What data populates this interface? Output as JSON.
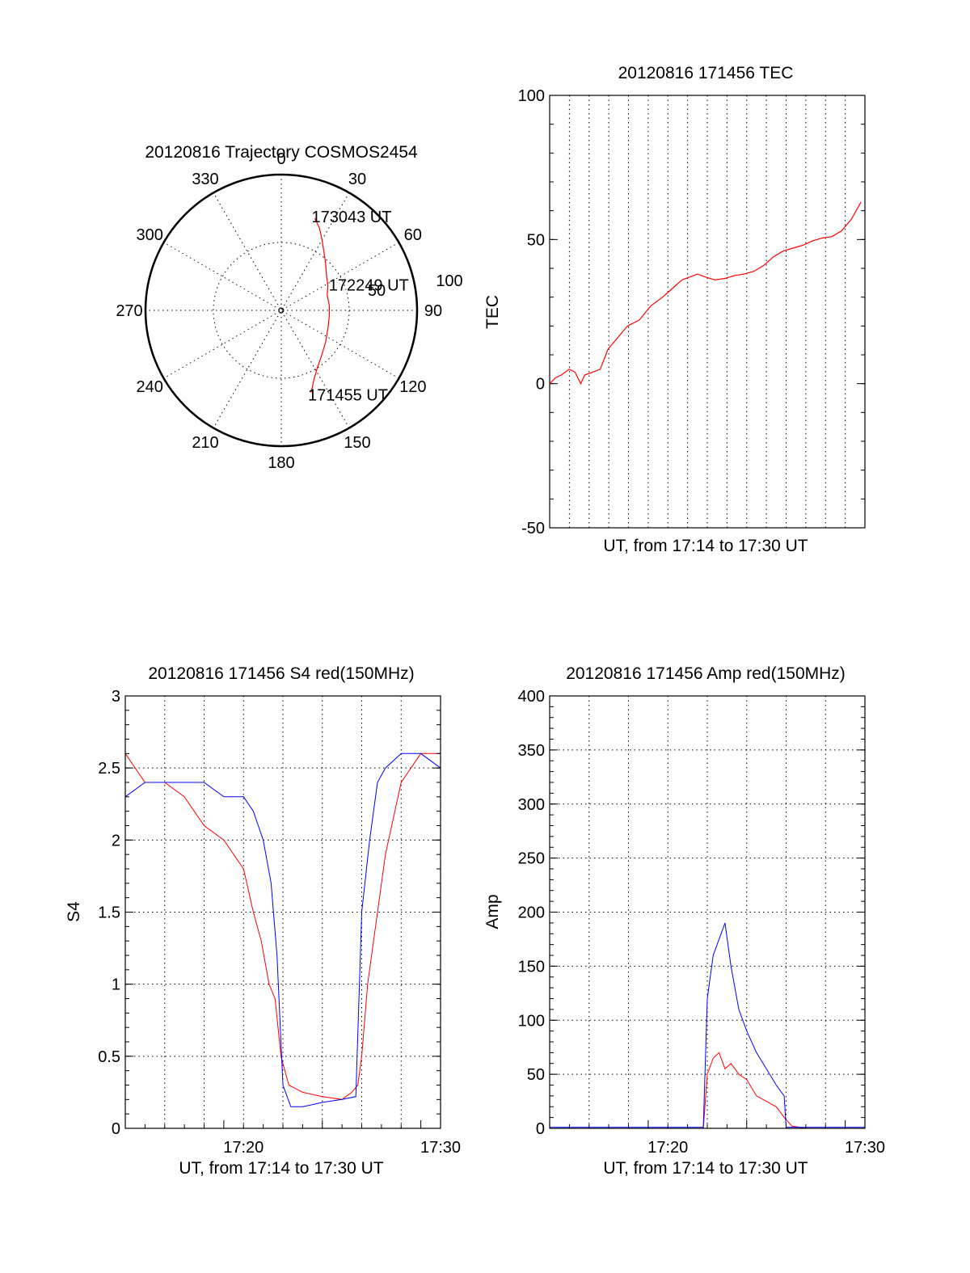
{
  "colors": {
    "red": "#ff0000",
    "blue": "#0000ff",
    "axis": "#000000"
  },
  "chart_data": [
    {
      "type": "polar",
      "title": "20120816 Trajectory COSMOS2454",
      "angle_ticks": [
        "0",
        "30",
        "60",
        "90",
        "120",
        "150",
        "180",
        "210",
        "240",
        "270",
        "300",
        "330"
      ],
      "radius_labels": [
        "50",
        "100"
      ],
      "radius_max": 90,
      "grid": "dotted",
      "series": [
        {
          "color": "#ff0000",
          "azimuth_deg": [
            160,
            155,
            148,
            138,
            125,
            110,
            96,
            84,
            72,
            62,
            52,
            43,
            36,
            30,
            25,
            20
          ],
          "elevation_deg": [
            32,
            39,
            45,
            50,
            54,
            57,
            58,
            58,
            58,
            55,
            52,
            47,
            42,
            36,
            30,
            25
          ]
        }
      ],
      "annotations": [
        {
          "text": "173043 UT",
          "at": "end"
        },
        {
          "text": "172249 UT",
          "at": "middle"
        },
        {
          "text": "171455 UT",
          "at": "start"
        }
      ]
    },
    {
      "type": "line",
      "title": "20120816 171456 TEC",
      "xlabel": "UT, from 17:14 to 17:30 UT",
      "ylabel": "TEC",
      "ylim": [
        -50,
        100
      ],
      "yticks": [
        "100",
        "50",
        "0",
        "-50"
      ],
      "xlim": [
        0,
        16.2
      ],
      "grid": "vertical dotted every minute",
      "series": [
        {
          "color": "#ff0000",
          "x": [
            0,
            0.3,
            0.6,
            1.0,
            1.3,
            1.6,
            1.8,
            2.2,
            2.6,
            3.0,
            3.5,
            4.0,
            4.6,
            5.2,
            5.8,
            6.3,
            6.8,
            7.2,
            7.6,
            8.0,
            8.5,
            9.0,
            9.5,
            10.0,
            10.5,
            11.0,
            11.5,
            12.0,
            12.5,
            13.0,
            13.5,
            14.0,
            14.5,
            15.0,
            15.5,
            16.0
          ],
          "y": [
            0,
            2,
            3,
            5,
            4,
            0,
            3,
            4,
            5,
            12,
            16,
            20,
            22,
            27,
            30,
            33,
            36,
            37,
            38,
            37,
            36,
            36.5,
            37.5,
            38,
            39,
            41,
            44,
            46,
            47,
            48,
            49.5,
            50.5,
            51,
            53,
            57,
            63
          ]
        }
      ]
    },
    {
      "type": "line",
      "title": "20120816 171456 S4 red(150MHz)",
      "xlabel": "UT, from 17:14 to 17:30 UT",
      "ylabel": "S4",
      "ylim": [
        0,
        3
      ],
      "yticks": [
        "0",
        "0.5",
        "1",
        "1.5",
        "2",
        "2.5",
        "3"
      ],
      "xlim": [
        0,
        16
      ],
      "xticks": [
        {
          "x": 6,
          "label": "17:20"
        },
        {
          "x": 16,
          "label": "17:30"
        }
      ],
      "grid": "dotted",
      "series": [
        {
          "color": "#ff0000",
          "x": [
            0,
            1,
            2,
            3,
            4,
            5,
            6,
            6.5,
            6.9,
            7.3,
            7.6,
            7.9,
            8.3,
            9,
            10,
            11,
            11.5,
            11.8,
            12.0,
            12.3,
            12.7,
            13.2,
            14,
            15,
            16
          ],
          "y": [
            2.6,
            2.4,
            2.4,
            2.3,
            2.1,
            2.0,
            1.8,
            1.5,
            1.3,
            1.0,
            0.9,
            0.5,
            0.3,
            0.25,
            0.22,
            0.2,
            0.25,
            0.3,
            0.5,
            1.0,
            1.4,
            1.9,
            2.4,
            2.6,
            2.6
          ]
        },
        {
          "color": "#0000ff",
          "x": [
            0,
            1,
            2,
            3,
            4,
            5,
            6,
            6.5,
            7.0,
            7.4,
            7.7,
            8.0,
            8.4,
            9,
            10,
            11,
            11.7,
            12.0,
            12.4,
            12.8,
            13.2,
            14,
            15,
            16
          ],
          "y": [
            2.3,
            2.4,
            2.4,
            2.4,
            2.4,
            2.3,
            2.3,
            2.2,
            2.0,
            1.7,
            1.2,
            0.3,
            0.15,
            0.15,
            0.18,
            0.2,
            0.22,
            1.5,
            2.0,
            2.4,
            2.5,
            2.6,
            2.6,
            2.5
          ]
        }
      ]
    },
    {
      "type": "line",
      "title": "20120816 171456 Amp red(150MHz)",
      "xlabel": "UT, from 17:14 to 17:30 UT",
      "ylabel": "Amp",
      "ylim": [
        0,
        400
      ],
      "yticks": [
        "0",
        "50",
        "100",
        "150",
        "200",
        "250",
        "300",
        "350",
        "400"
      ],
      "xlim": [
        0,
        16
      ],
      "xticks": [
        {
          "x": 6,
          "label": "17:20"
        },
        {
          "x": 16,
          "label": "17:30"
        }
      ],
      "grid": "dotted",
      "series": [
        {
          "color": "#ff0000",
          "x": [
            0,
            7.8,
            8.0,
            8.3,
            8.6,
            8.9,
            9.2,
            9.6,
            10.0,
            10.5,
            11.0,
            11.5,
            11.9,
            12.3,
            13,
            16
          ],
          "y": [
            0,
            0,
            50,
            65,
            70,
            55,
            60,
            50,
            45,
            30,
            25,
            20,
            10,
            2,
            0,
            0
          ]
        },
        {
          "color": "#0000ff",
          "x": [
            0,
            7.8,
            8.0,
            8.3,
            8.6,
            8.9,
            9.2,
            9.6,
            10.0,
            10.5,
            11.0,
            11.5,
            11.9,
            12.0,
            13,
            16
          ],
          "y": [
            1,
            1,
            120,
            160,
            175,
            190,
            150,
            110,
            90,
            70,
            55,
            40,
            30,
            1,
            1,
            1
          ]
        }
      ]
    }
  ]
}
